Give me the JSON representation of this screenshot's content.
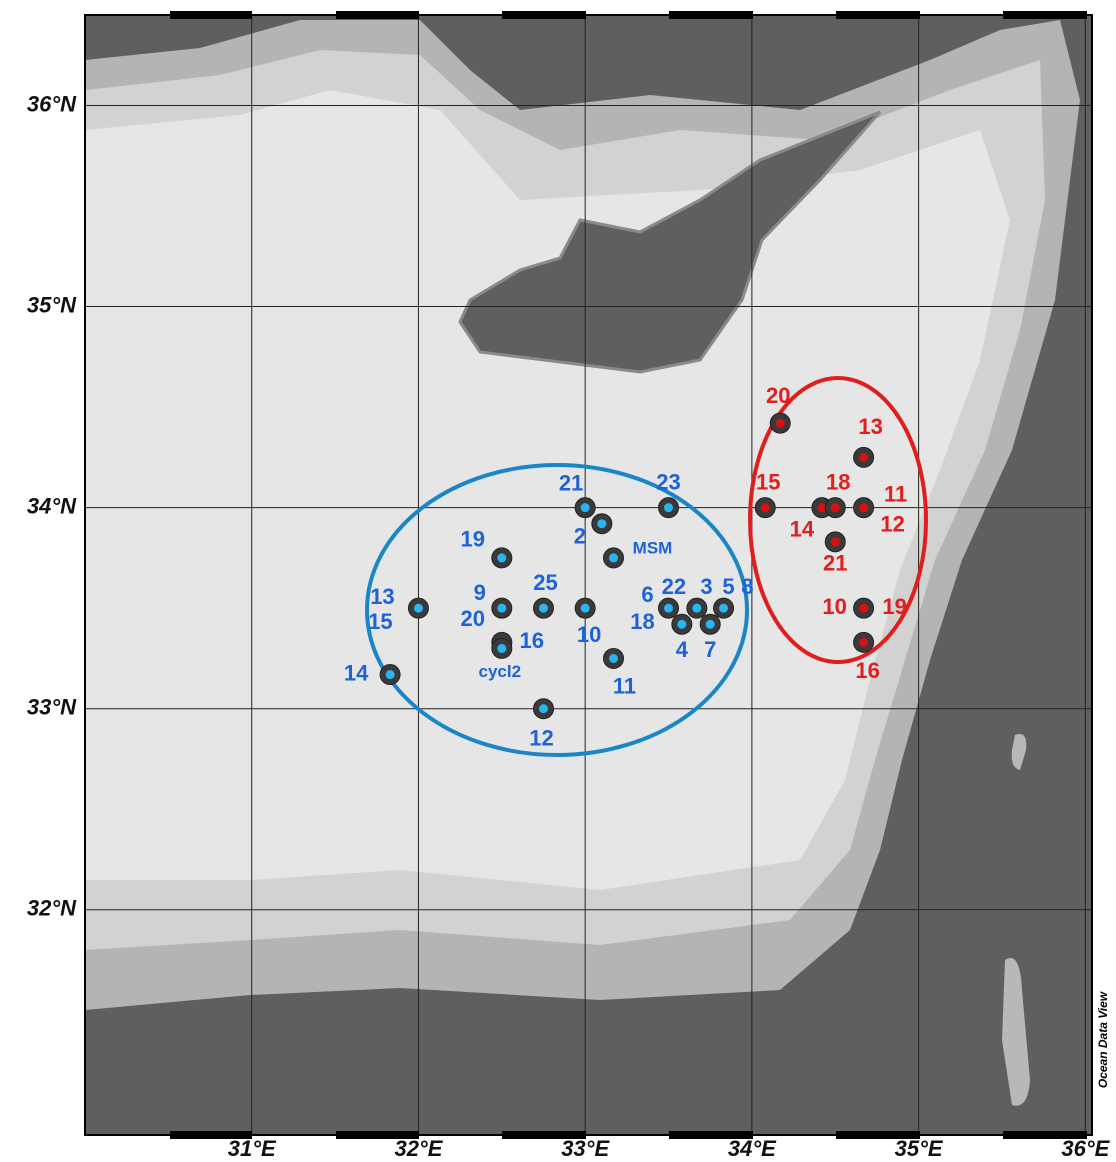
{
  "map": {
    "xlim": [
      30,
      36.04
    ],
    "ylim": [
      30.88,
      36.45
    ],
    "xticks": [
      {
        "value": 31,
        "label": "31°E"
      },
      {
        "value": 32,
        "label": "32°E"
      },
      {
        "value": 33,
        "label": "33°E"
      },
      {
        "value": 34,
        "label": "34°E"
      },
      {
        "value": 35,
        "label": "35°E"
      },
      {
        "value": 36,
        "label": "36°E"
      }
    ],
    "yticks": [
      {
        "value": 32,
        "label": "32°N"
      },
      {
        "value": 33,
        "label": "33°N"
      },
      {
        "value": 34,
        "label": "34°N"
      },
      {
        "value": 35,
        "label": "35°N"
      },
      {
        "value": 36,
        "label": "36°N"
      }
    ],
    "grid": true,
    "credit": "Ocean Data View",
    "groups": [
      {
        "color": "#1e62d8",
        "marker": "#2ab4f0",
        "points": [
          {
            "lon": 33,
            "lat": 34,
            "labels": [
              "21"
            ]
          },
          {
            "lon": 33.1,
            "lat": 33.92,
            "labels": [
              "2"
            ]
          },
          {
            "lon": 33.5,
            "lat": 34,
            "labels": [
              "23"
            ]
          },
          {
            "lon": 33.17,
            "lat": 33.75,
            "labels": [
              "MSM"
            ]
          },
          {
            "lon": 32.5,
            "lat": 33.75,
            "labels": [
              "19"
            ]
          },
          {
            "lon": 32,
            "lat": 33.5,
            "labels": [
              "13",
              "15"
            ]
          },
          {
            "lon": 32.5,
            "lat": 33.5,
            "labels": [
              "9",
              "20"
            ]
          },
          {
            "lon": 32.75,
            "lat": 33.5,
            "labels": [
              "25"
            ]
          },
          {
            "lon": 33,
            "lat": 33.5,
            "labels": [
              "10"
            ]
          },
          {
            "lon": 32.5,
            "lat": 33.33,
            "labels": [
              "16"
            ]
          },
          {
            "lon": 32.5,
            "lat": 33.3,
            "labels": [
              "cycl2"
            ]
          },
          {
            "lon": 33.5,
            "lat": 33.5,
            "labels": [
              "6",
              "18"
            ]
          },
          {
            "lon": 33.67,
            "lat": 33.5,
            "labels": [
              "22"
            ]
          },
          {
            "lon": 33.58,
            "lat": 33.42,
            "labels": [
              "4"
            ]
          },
          {
            "lon": 33.83,
            "lat": 33.5,
            "labels": [
              "3",
              "5",
              "8"
            ]
          },
          {
            "lon": 33.75,
            "lat": 33.42,
            "labels": [
              "7"
            ]
          },
          {
            "lon": 33.17,
            "lat": 33.25,
            "labels": [
              "11"
            ]
          },
          {
            "lon": 31.83,
            "lat": 33.17,
            "labels": [
              "14"
            ]
          },
          {
            "lon": 32.75,
            "lat": 33,
            "labels": [
              "12"
            ]
          }
        ]
      },
      {
        "color": "#e01e1e",
        "marker": "#d81010",
        "points": [
          {
            "lon": 34.17,
            "lat": 34.42,
            "labels": [
              "20"
            ]
          },
          {
            "lon": 34.67,
            "lat": 34.25,
            "labels": [
              "13"
            ]
          },
          {
            "lon": 34.08,
            "lat": 34,
            "labels": [
              "15"
            ]
          },
          {
            "lon": 34.42,
            "lat": 34,
            "labels": [
              "14"
            ]
          },
          {
            "lon": 34.5,
            "lat": 34,
            "labels": [
              "18"
            ]
          },
          {
            "lon": 34.67,
            "lat": 34,
            "labels": [
              "11",
              "12"
            ]
          },
          {
            "lon": 34.5,
            "lat": 33.83,
            "labels": [
              "21"
            ]
          },
          {
            "lon": 34.67,
            "lat": 33.5,
            "labels": [
              "10",
              "19"
            ]
          },
          {
            "lon": 34.67,
            "lat": 33.33,
            "labels": [
              "16"
            ]
          }
        ]
      }
    ]
  }
}
